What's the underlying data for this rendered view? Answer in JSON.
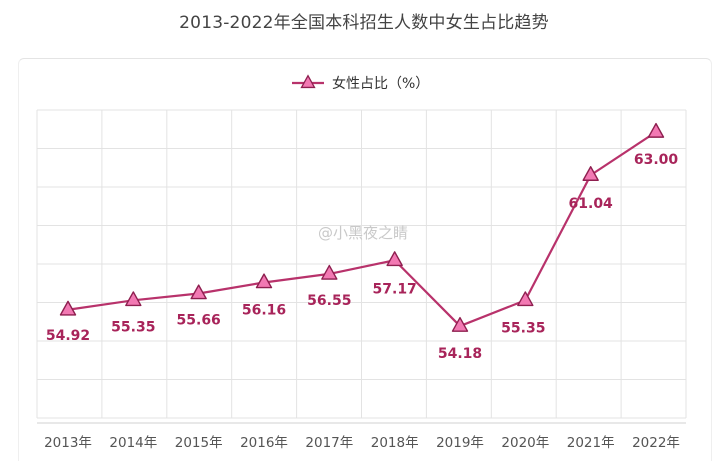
{
  "title": "2013-2022年全国本科招生人数中女生占比趋势",
  "watermark": "@小黑夜之睛",
  "colors": {
    "line": "#b8326b",
    "marker_fill": "#f279b3",
    "marker_stroke": "#8e1f4f",
    "label": "#a8245a",
    "grid": "#e3e3e3"
  },
  "chart_data": {
    "type": "line",
    "title": "2013-2022年全国本科招生人数中女生占比趋势",
    "xlabel": "",
    "ylabel": "",
    "ylim": [
      50,
      64
    ],
    "grid": true,
    "legend_position": "top-center",
    "categories": [
      "2013年",
      "2014年",
      "2015年",
      "2016年",
      "2017年",
      "2018年",
      "2019年",
      "2020年",
      "2021年",
      "2022年"
    ],
    "series": [
      {
        "name": "女性占比（%）",
        "values": [
          54.92,
          55.35,
          55.66,
          56.16,
          56.55,
          57.17,
          54.18,
          55.35,
          61.04,
          63.0
        ],
        "labels": [
          "54.92",
          "55.35",
          "55.66",
          "56.16",
          "56.55",
          "57.17",
          "54.18",
          "55.35",
          "61.04",
          "63.00"
        ],
        "marker": "triangle"
      }
    ]
  }
}
